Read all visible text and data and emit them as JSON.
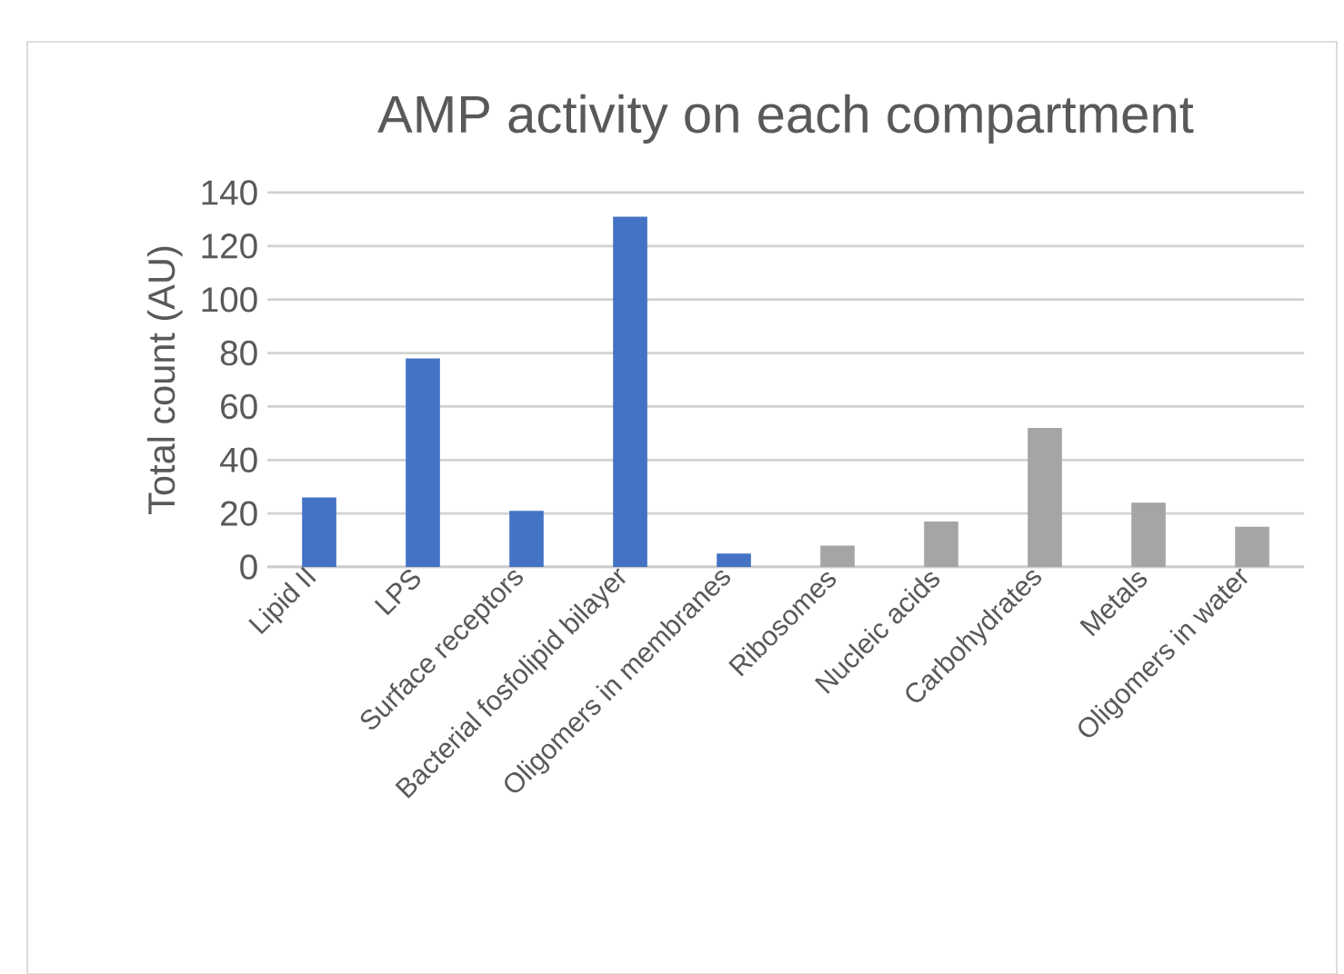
{
  "chart_data": {
    "type": "bar",
    "title": "AMP activity on each compartment",
    "ylabel": "Total count (AU)",
    "categories": [
      "Lipid II",
      "LPS",
      "Surface receptors",
      "Bacterial fosfolipid bilayer",
      "Oligomers in membranes",
      "Ribosomes",
      "Nucleic acids",
      "Carbohydrates",
      "Metals",
      "Oligomers in water"
    ],
    "values": [
      26,
      78,
      21,
      131,
      5,
      8,
      17,
      52,
      24,
      15
    ],
    "colors": [
      "#4472c4",
      "#4472c4",
      "#4472c4",
      "#4472c4",
      "#4472c4",
      "#a5a5a5",
      "#a5a5a5",
      "#a5a5a5",
      "#a5a5a5",
      "#a5a5a5"
    ],
    "ylim": [
      0,
      140
    ],
    "yticks": [
      0,
      20,
      40,
      60,
      80,
      100,
      120,
      140
    ],
    "grid": "y"
  }
}
